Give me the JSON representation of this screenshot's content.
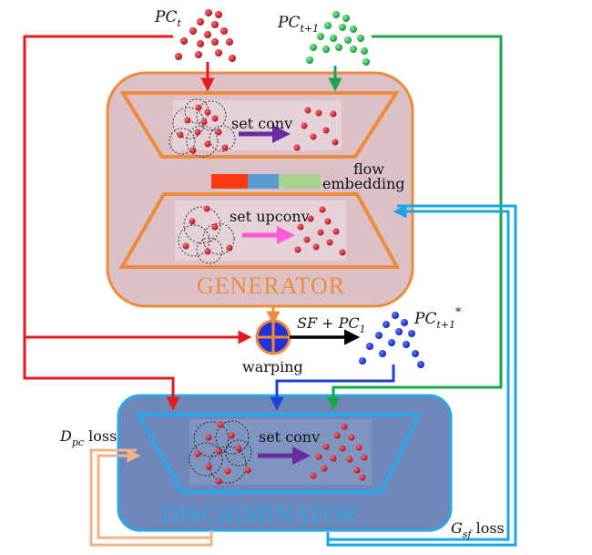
{
  "labels": {
    "pc_t": "PC",
    "pc_t_sub": "t",
    "pc_t1": "PC",
    "pc_t1_sub": "t+1",
    "pc_t1_pred": "PC",
    "pc_t1_pred_sub": "t+1",
    "pc_t1_pred_sup": "*",
    "set_conv_gen": "set conv",
    "set_upconv": "set upconv",
    "set_conv_dis": "set conv",
    "flow": "flow",
    "embedding": "embedding",
    "generator": "GENERATOR",
    "discriminator": "DISCRIMINATOR",
    "sf_pc": "SF + PC",
    "sf_pc_sub": "1",
    "warping": "warping",
    "d_loss": "D",
    "d_loss_sub": "pc",
    "d_loss_tail": " loss",
    "g_loss": "G",
    "g_loss_sub": "sf",
    "g_loss_tail": " loss"
  },
  "colors": {
    "red_path": "#e41a1c",
    "green_path": "#1aa64a",
    "blue_path": "#1f3fd6",
    "cyan_dash": "#1aa5e6",
    "peach_dash": "#f1b48a",
    "generator_fill": "#dcc0c8",
    "generator_border": "#ee8a3c",
    "discriminator_fill": "#6f86b9",
    "discriminator_border": "#2aa7e8",
    "embed_red": "#ff3a10",
    "embed_blue": "#5b9bd5",
    "embed_green": "#a9d18e"
  }
}
